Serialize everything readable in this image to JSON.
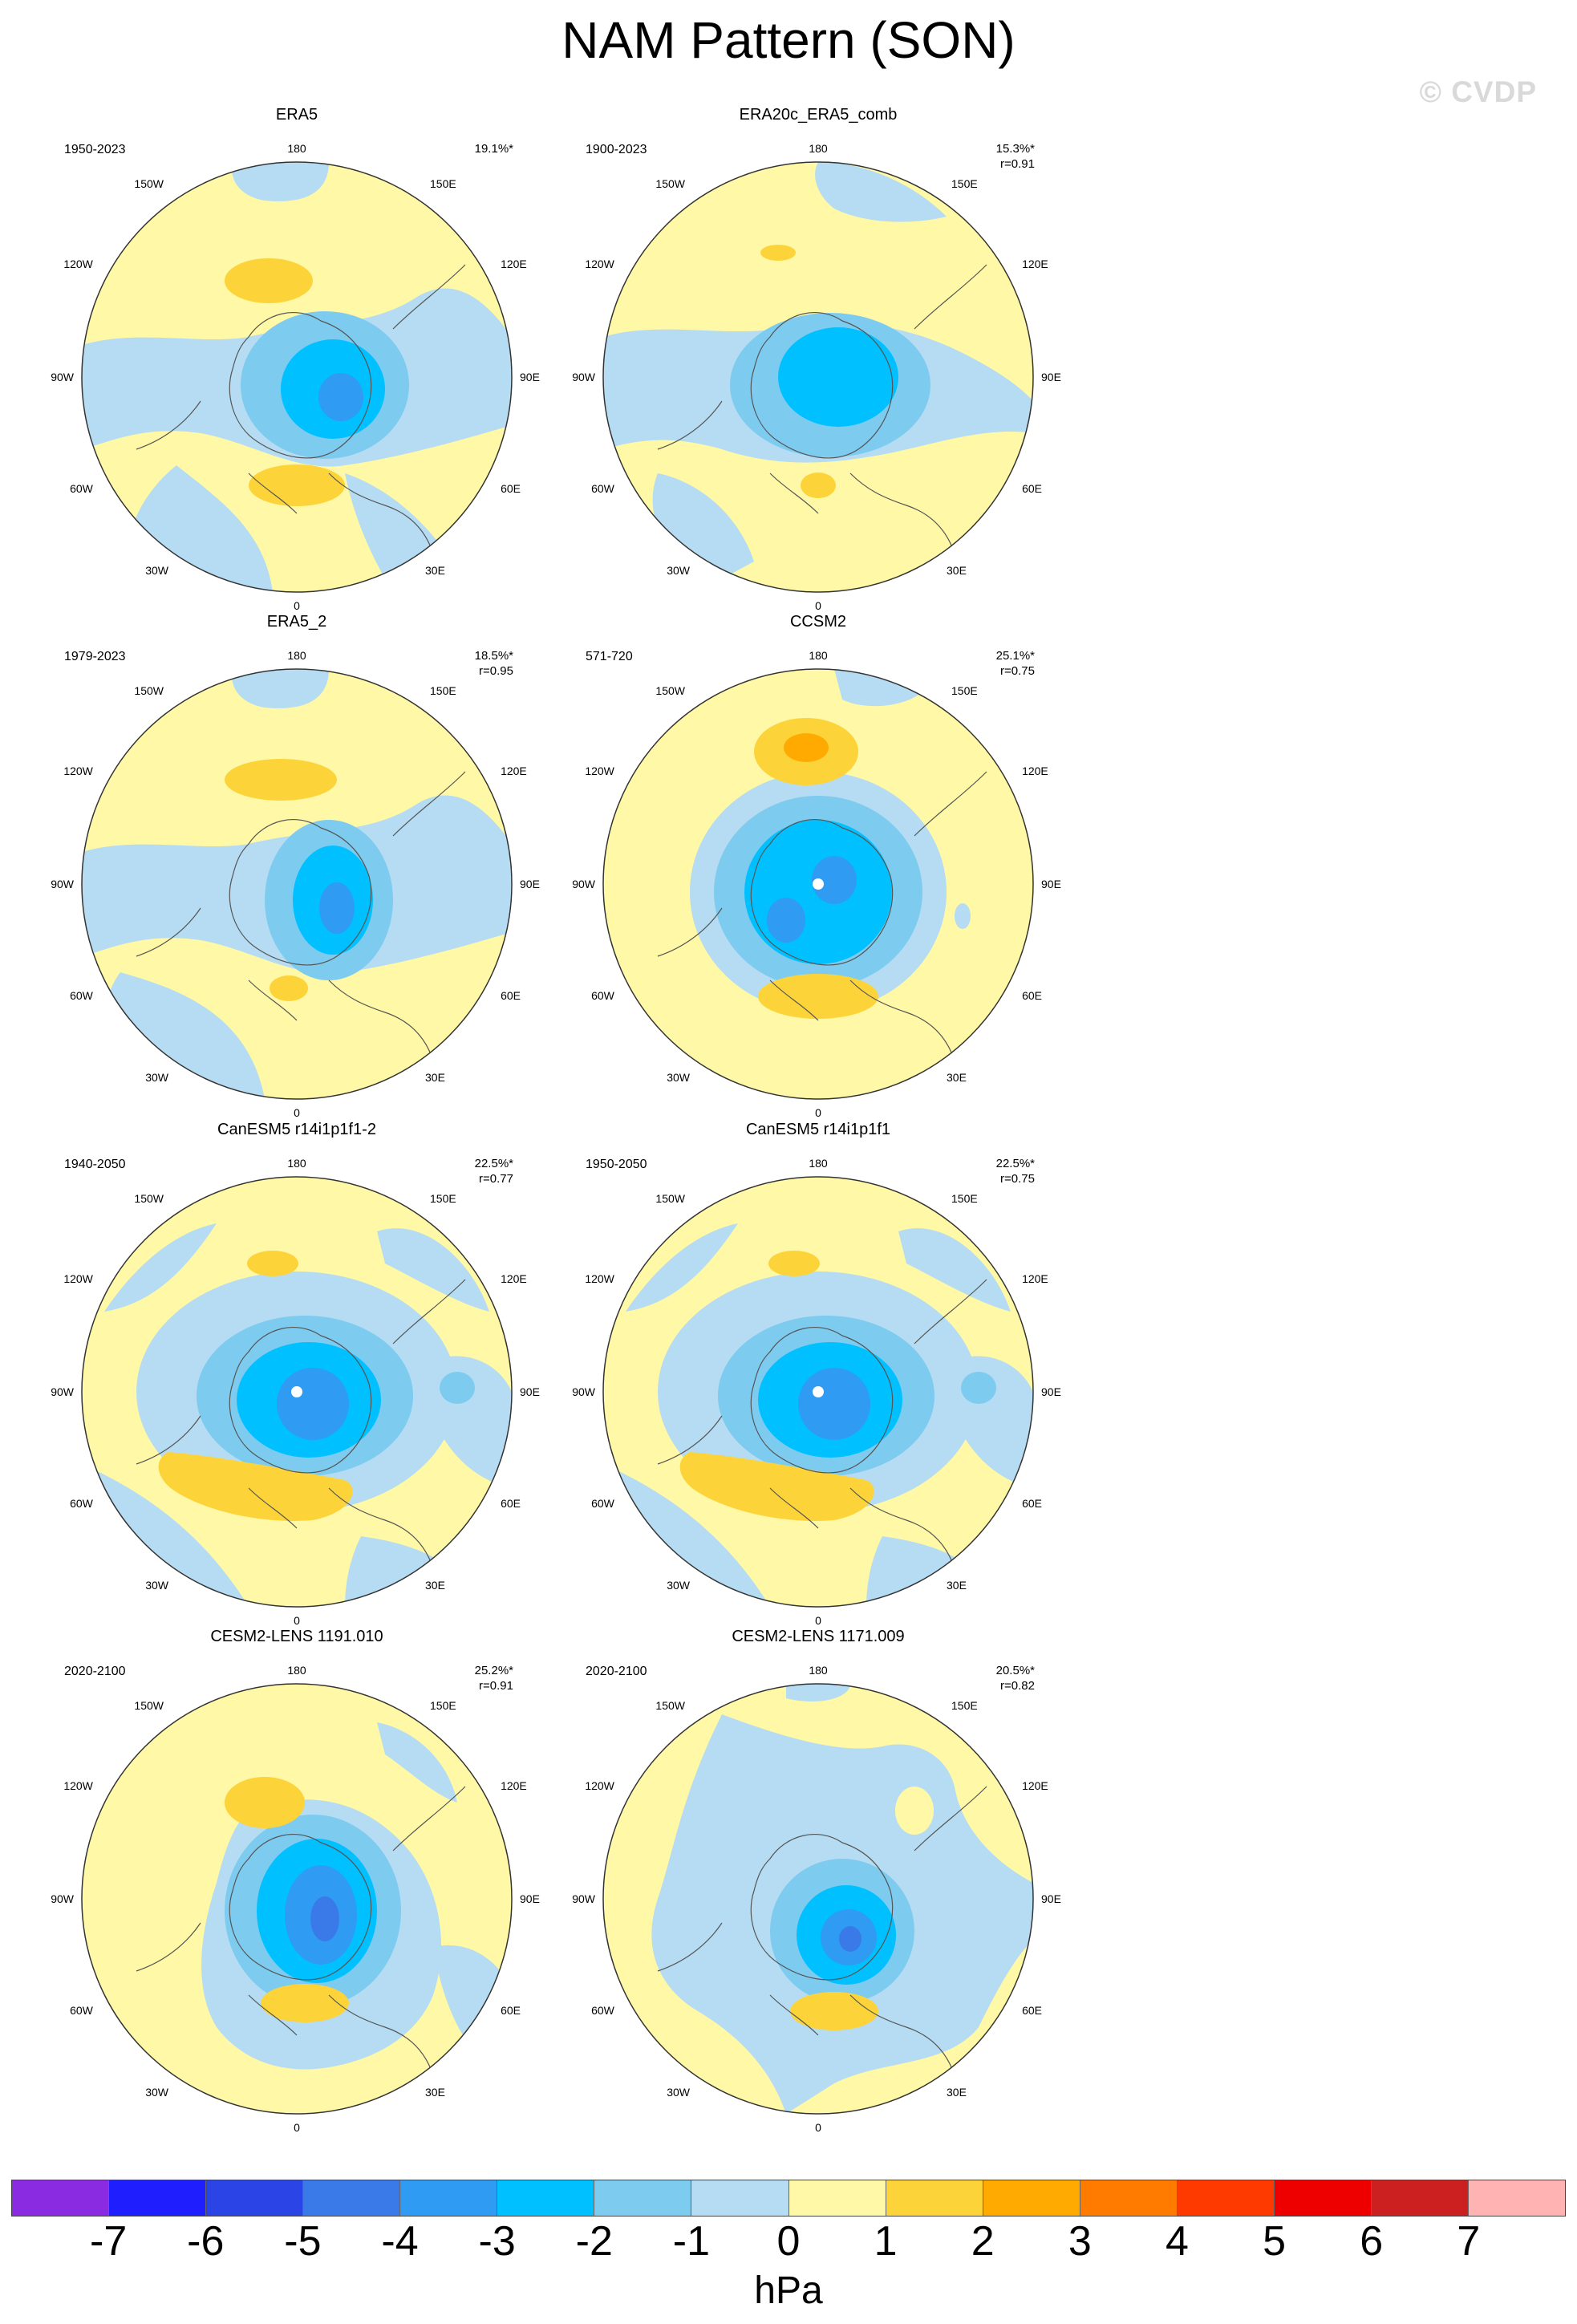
{
  "figure": {
    "title": "NAM Pattern (SON)",
    "copyright": "© CVDP",
    "units": "hPa"
  },
  "colorbar": {
    "labels": [
      "-7",
      "-6",
      "-5",
      "-4",
      "-3",
      "-2",
      "-1",
      "0",
      "1",
      "2",
      "3",
      "4",
      "5",
      "6",
      "7"
    ],
    "colors": [
      "#8a2be2",
      "#1e1eff",
      "#2b44e6",
      "#3a7ae8",
      "#2f9bf2",
      "#00c0ff",
      "#7ecbf0",
      "#b5dcf2",
      "#fff8a6",
      "#fcd43a",
      "#ffaa00",
      "#ff7b00",
      "#ff3a00",
      "#ee0000",
      "#cc1f1f",
      "#ffb3b3"
    ]
  },
  "map_labels": {
    "top": "180",
    "bottom": "0",
    "left_upper": "150W",
    "left_mid_upper": "120W",
    "left_mid": "90W",
    "left_mid_lower": "60W",
    "left_lower": "30W",
    "right_upper": "150E",
    "right_mid_upper": "120E",
    "right_mid": "90E",
    "right_mid_lower": "60E",
    "right_lower": "30E"
  },
  "panels": [
    {
      "title": "ERA5",
      "period": "1950-2023",
      "stats": "19.1%*"
    },
    {
      "title": "ERA20c_ERA5_comb",
      "period": "1900-2023",
      "stats": "15.3%*\nr=0.91"
    },
    {
      "title": "ERA5_2",
      "period": "1979-2023",
      "stats": "18.5%*\nr=0.95"
    },
    {
      "title": "CCSM2",
      "period": "571-720",
      "stats": "25.1%*\nr=0.75"
    },
    {
      "title": "CanESM5 r14i1p1f1-2",
      "period": "1940-2050",
      "stats": "22.5%*\nr=0.77"
    },
    {
      "title": "CanESM5 r14i1p1f1",
      "period": "1950-2050",
      "stats": "22.5%*\nr=0.75"
    },
    {
      "title": "CESM2-LENS 1191.010",
      "period": "2020-2100",
      "stats": "25.2%*\nr=0.91"
    },
    {
      "title": "CESM2-LENS 1171.009",
      "period": "2020-2100",
      "stats": "20.5%*\nr=0.82"
    }
  ]
}
